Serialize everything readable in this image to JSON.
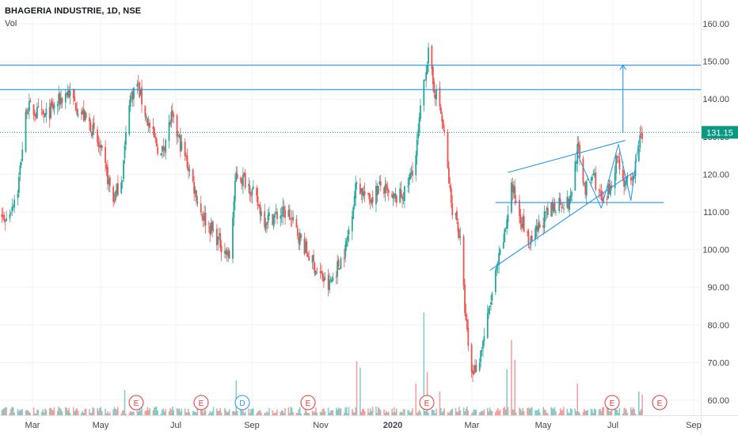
{
  "header": {
    "title": "BHAGERIA INDUSTRIE, 1D, NSE",
    "volume_label": "Vol"
  },
  "chart_data": {
    "type": "candlestick",
    "symbol": "BHAGERIA INDUSTRIE",
    "interval": "1D",
    "exchange": "NSE",
    "ylim": [
      56,
      166
    ],
    "y_ticks": [
      "160.00",
      "150.00",
      "140.00",
      "130.00",
      "120.00",
      "110.00",
      "100.00",
      "90.00",
      "80.00",
      "70.00",
      "60.00"
    ],
    "x_ticks": [
      "Mar",
      "May",
      "Jul",
      "Sep",
      "Nov",
      "2020",
      "Mar",
      "May",
      "Jul",
      "Sep"
    ],
    "last_price": "131.15",
    "last_price_value": 131.15,
    "colors": {
      "up": "#26a69a",
      "down": "#ef5350",
      "drawing": "#2196f3",
      "price_line": "#089981",
      "event_marker": "#e53935",
      "dividend_marker": "#2196f3"
    },
    "horizontal_levels": [
      149,
      142.5,
      112.5
    ],
    "trendlines": [
      {
        "from": [
          "2020-05-01",
          120.5
        ],
        "to": [
          "2020-08-12",
          129
        ]
      },
      {
        "from": [
          "2020-04-15",
          94.5
        ],
        "to": [
          "2020-08-19",
          120.5
        ]
      }
    ],
    "target_arrow": {
      "date": "2020-08-10",
      "from": 131,
      "to": 149
    },
    "event_markers": [
      "E",
      "E",
      "D",
      "E",
      "E",
      "E",
      "E"
    ],
    "price_path": [
      [
        "2019-02-01",
        110
      ],
      [
        "2019-02-15",
        108
      ],
      [
        "2019-02-25",
        116
      ],
      [
        "2019-03-05",
        138
      ],
      [
        "2019-03-20",
        135
      ],
      [
        "2019-04-10",
        142
      ],
      [
        "2019-04-20",
        137
      ],
      [
        "2019-04-30",
        133
      ],
      [
        "2019-05-10",
        125
      ],
      [
        "2019-05-20",
        113
      ],
      [
        "2019-05-28",
        120
      ],
      [
        "2019-06-03",
        140
      ],
      [
        "2019-06-10",
        144
      ],
      [
        "2019-06-20",
        133
      ],
      [
        "2019-07-01",
        125
      ],
      [
        "2019-07-10",
        135
      ],
      [
        "2019-07-25",
        122
      ],
      [
        "2019-08-05",
        110
      ],
      [
        "2019-08-15",
        105
      ],
      [
        "2019-08-30",
        98
      ],
      [
        "2019-09-05",
        120
      ],
      [
        "2019-09-15",
        118
      ],
      [
        "2019-09-30",
        108
      ],
      [
        "2019-10-20",
        110
      ],
      [
        "2019-11-10",
        97
      ],
      [
        "2019-11-25",
        90
      ],
      [
        "2019-12-10",
        100
      ],
      [
        "2019-12-20",
        118
      ],
      [
        "2019-12-30",
        113
      ],
      [
        "2020-01-10",
        117
      ],
      [
        "2020-01-20",
        113
      ],
      [
        "2020-02-01",
        115
      ],
      [
        "2020-02-10",
        125
      ],
      [
        "2020-02-17",
        145
      ],
      [
        "2020-02-21",
        152
      ],
      [
        "2020-02-25",
        144
      ],
      [
        "2020-03-02",
        138
      ],
      [
        "2020-03-06",
        130
      ],
      [
        "2020-03-12",
        112
      ],
      [
        "2020-03-17",
        108
      ],
      [
        "2020-03-20",
        102
      ],
      [
        "2020-03-25",
        80
      ],
      [
        "2020-03-30",
        67
      ],
      [
        "2020-04-05",
        70
      ],
      [
        "2020-04-12",
        80
      ],
      [
        "2020-04-20",
        93
      ],
      [
        "2020-04-28",
        104
      ],
      [
        "2020-05-04",
        117
      ],
      [
        "2020-05-10",
        111
      ],
      [
        "2020-05-20",
        101
      ],
      [
        "2020-06-01",
        108
      ],
      [
        "2020-06-15",
        113
      ],
      [
        "2020-06-24",
        112
      ],
      [
        "2020-07-01",
        127
      ],
      [
        "2020-07-08",
        116
      ],
      [
        "2020-07-15",
        120
      ],
      [
        "2020-07-24",
        111
      ],
      [
        "2020-07-30",
        117
      ],
      [
        "2020-08-05",
        125
      ],
      [
        "2020-08-11",
        118
      ],
      [
        "2020-08-18",
        117
      ],
      [
        "2020-08-24",
        128
      ],
      [
        "2020-08-27",
        131
      ]
    ]
  }
}
